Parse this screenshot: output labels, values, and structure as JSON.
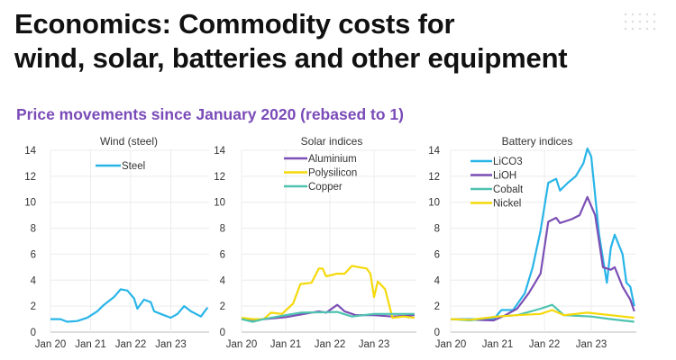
{
  "header": {
    "title_line1": "Economics: Commodity costs for",
    "title_line2": "wind, solar, batteries and other equipment",
    "subtitle": "Price movements since January 2020 (rebased to 1)"
  },
  "chart_data": [
    {
      "type": "line",
      "title": "Wind (steel)",
      "ylim": [
        0,
        14
      ],
      "yticks": [
        "0",
        "2",
        "4",
        "6",
        "8",
        "10",
        "12",
        "14"
      ],
      "xticks": [
        "Jan 20",
        "Jan 21",
        "Jan 22",
        "Jan 23"
      ],
      "grid": true,
      "legend": "top-center",
      "series": [
        {
          "name": "Steel",
          "color": "#29b5e8",
          "x": [
            "2020-01",
            "2020-04",
            "2020-06",
            "2020-09",
            "2020-12",
            "2021-03",
            "2021-05",
            "2021-08",
            "2021-10",
            "2021-12",
            "2022-02",
            "2022-03",
            "2022-05",
            "2022-07",
            "2022-08",
            "2022-10",
            "2023-01",
            "2023-03",
            "2023-05",
            "2023-07",
            "2023-10",
            "2023-12"
          ],
          "y": [
            1.0,
            1.0,
            0.8,
            0.85,
            1.1,
            1.6,
            2.1,
            2.7,
            3.3,
            3.2,
            2.6,
            1.8,
            2.5,
            2.3,
            1.6,
            1.4,
            1.1,
            1.4,
            2.0,
            1.6,
            1.2,
            1.9
          ]
        }
      ]
    },
    {
      "type": "line",
      "title": "Solar indices",
      "ylim": [
        0,
        14
      ],
      "yticks": [
        "0",
        "2",
        "4",
        "6",
        "8",
        "10",
        "12",
        "14"
      ],
      "xticks": [
        "Jan 20",
        "Jan 21",
        "Jan 22",
        "Jan 23"
      ],
      "grid": true,
      "legend": "top-center",
      "series": [
        {
          "name": "Aluminium",
          "color": "#7b4fb5",
          "x": [
            "2020-01",
            "2020-04",
            "2020-07",
            "2021-01",
            "2021-06",
            "2021-10",
            "2021-12",
            "2022-03",
            "2022-05",
            "2022-08",
            "2023-01",
            "2023-06",
            "2023-12"
          ],
          "y": [
            1.0,
            0.85,
            1.0,
            1.15,
            1.4,
            1.6,
            1.5,
            2.1,
            1.6,
            1.3,
            1.3,
            1.2,
            1.3
          ]
        },
        {
          "name": "Polysilicon",
          "color": "#f5d90a",
          "x": [
            "2020-01",
            "2020-04",
            "2020-07",
            "2020-09",
            "2020-12",
            "2021-03",
            "2021-05",
            "2021-08",
            "2021-10",
            "2021-11",
            "2021-12",
            "2022-03",
            "2022-05",
            "2022-07",
            "2022-09",
            "2022-11",
            "2022-12",
            "2023-01",
            "2023-02",
            "2023-04",
            "2023-06",
            "2023-09",
            "2023-12"
          ],
          "y": [
            1.1,
            1.0,
            1.0,
            1.5,
            1.4,
            2.2,
            3.7,
            3.8,
            4.9,
            4.9,
            4.3,
            4.5,
            4.5,
            5.1,
            5.0,
            4.9,
            4.5,
            2.7,
            3.9,
            3.3,
            1.1,
            1.2,
            1.1
          ]
        },
        {
          "name": "Copper",
          "color": "#4dc3b0",
          "x": [
            "2020-01",
            "2020-04",
            "2020-07",
            "2021-01",
            "2021-05",
            "2022-03",
            "2022-07",
            "2023-01",
            "2023-12"
          ],
          "y": [
            1.0,
            0.8,
            1.0,
            1.3,
            1.5,
            1.55,
            1.2,
            1.4,
            1.4
          ]
        }
      ]
    },
    {
      "type": "line",
      "title": "Battery indices",
      "ylim": [
        0,
        14
      ],
      "yticks": [
        "0",
        "2",
        "4",
        "6",
        "8",
        "10",
        "12",
        "14"
      ],
      "xticks": [
        "Jan 20",
        "Jan 21",
        "Jan 22",
        "Jan 23"
      ],
      "grid": true,
      "legend": "top-left",
      "series": [
        {
          "name": "LiCO3",
          "color": "#29b5e8",
          "x": [
            "2020-01",
            "2020-12",
            "2021-02",
            "2021-05",
            "2021-08",
            "2021-10",
            "2021-12",
            "2022-02",
            "2022-04",
            "2022-05",
            "2022-07",
            "2022-09",
            "2022-11",
            "2022-12",
            "2023-01",
            "2023-03",
            "2023-05",
            "2023-06",
            "2023-07",
            "2023-09",
            "2023-10",
            "2023-11",
            "2023-12"
          ],
          "y": [
            1.0,
            1.0,
            1.7,
            1.7,
            3.0,
            5.0,
            7.8,
            11.5,
            11.8,
            10.9,
            11.5,
            12.0,
            13.0,
            14.5,
            13.5,
            7.5,
            3.8,
            6.5,
            7.5,
            6.0,
            3.8,
            3.5,
            2.0
          ]
        },
        {
          "name": "LiOH",
          "color": "#7b4fb5",
          "x": [
            "2020-01",
            "2020-12",
            "2021-03",
            "2021-06",
            "2021-09",
            "2021-12",
            "2022-02",
            "2022-04",
            "2022-05",
            "2022-08",
            "2022-10",
            "2022-12",
            "2023-02",
            "2023-04",
            "2023-06",
            "2023-07",
            "2023-09",
            "2023-11",
            "2023-12"
          ],
          "y": [
            1.0,
            0.9,
            1.3,
            1.8,
            3.0,
            4.5,
            8.5,
            8.8,
            8.4,
            8.7,
            9.0,
            10.4,
            9.0,
            5.0,
            4.8,
            5.0,
            3.5,
            2.5,
            1.6
          ]
        },
        {
          "name": "Cobalt",
          "color": "#4dc3b0",
          "x": [
            "2020-01",
            "2020-06",
            "2021-01",
            "2021-06",
            "2021-12",
            "2022-03",
            "2022-06",
            "2023-01",
            "2023-06",
            "2023-12"
          ],
          "y": [
            1.0,
            0.9,
            1.2,
            1.3,
            1.8,
            2.1,
            1.3,
            1.2,
            1.0,
            0.8
          ]
        },
        {
          "name": "Nickel",
          "color": "#f5d90a",
          "x": [
            "2020-01",
            "2020-06",
            "2021-01",
            "2021-06",
            "2021-12",
            "2022-03",
            "2022-06",
            "2022-12",
            "2023-06",
            "2023-12"
          ],
          "y": [
            1.0,
            0.95,
            1.2,
            1.3,
            1.4,
            1.7,
            1.3,
            1.5,
            1.3,
            1.1
          ]
        }
      ]
    }
  ]
}
